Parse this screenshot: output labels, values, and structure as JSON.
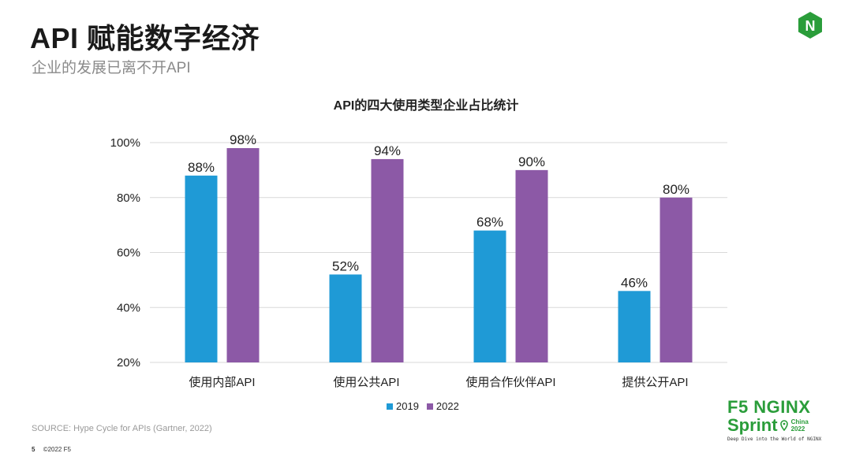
{
  "header": {
    "title": "API 赋能数字经济",
    "subtitle": "企业的发展已离不开API"
  },
  "logo": {
    "icon": "nginx-n-icon",
    "letter": "N",
    "color": "#2a9d3a"
  },
  "chart_data": {
    "type": "bar",
    "title": "API的四大使用类型企业占比统计",
    "categories": [
      "使用内部API",
      "使用公共API",
      "使用合作伙伴API",
      "提供公开API"
    ],
    "series": [
      {
        "name": "2019",
        "color": "#1f9ad6",
        "values": [
          88,
          52,
          68,
          46
        ]
      },
      {
        "name": "2022",
        "color": "#8c59a6",
        "values": [
          98,
          94,
          90,
          80
        ]
      }
    ],
    "ylim": [
      20,
      100
    ],
    "yticks": [
      "20%",
      "40%",
      "60%",
      "80%",
      "100%"
    ],
    "grid": true,
    "legend": "bottom"
  },
  "source": "SOURCE: Hype Cycle for APIs (Gartner, 2022)",
  "footer": {
    "page": "5",
    "copyright": "©2022 F5"
  },
  "brand": {
    "line1": "F5 NGINX",
    "line2": "Sprint",
    "location": "China",
    "year": "2022",
    "tagline": "Deep Dive into the World of NGINX"
  }
}
